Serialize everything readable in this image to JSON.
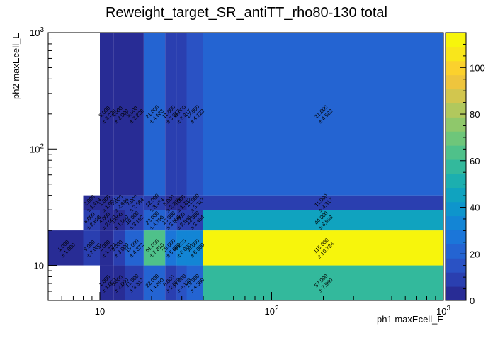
{
  "chart_data": {
    "type": "heatmap",
    "title": "Reweight_target_SR_antiTT_rho80-130 total",
    "xlabel": "ph1 maxEcell_E",
    "ylabel": "ph2 maxEcell_E",
    "x_scale": "log",
    "y_scale": "log",
    "xlim": [
      5,
      1000
    ],
    "ylim": [
      5,
      1000
    ],
    "x_tick_labels": [
      "10",
      "10^2",
      "10^3"
    ],
    "y_tick_labels": [
      "10",
      "10^2",
      "10^3"
    ],
    "z_range": [
      0,
      115
    ],
    "colorbar_ticks": [
      "0",
      "20",
      "40",
      "60",
      "80",
      "100"
    ],
    "x_edges": [
      5,
      8,
      10,
      12,
      14,
      18,
      24,
      28,
      32,
      40,
      1000
    ],
    "y_edges": [
      5,
      10,
      20,
      30,
      40,
      1000
    ],
    "cells": [
      {
        "ix": 2,
        "iy": 0,
        "value": 1,
        "text": "1.000",
        "err": "1.000"
      },
      {
        "ix": 3,
        "iy": 0,
        "value": 6,
        "text": "6.000",
        "err": "2.000"
      },
      {
        "ix": 4,
        "iy": 0,
        "value": 11,
        "text": "11.000",
        "err": "3.317"
      },
      {
        "ix": 5,
        "iy": 0,
        "value": 22,
        "text": "22.000",
        "err": "4.690"
      },
      {
        "ix": 6,
        "iy": 0,
        "value": 8,
        "text": "8.000",
        "err": "2.828"
      },
      {
        "ix": 7,
        "iy": 0,
        "value": 17,
        "text": "17.000",
        "err": "4.123"
      },
      {
        "ix": 8,
        "iy": 0,
        "value": 19,
        "text": "19.000",
        "err": "4.359"
      },
      {
        "ix": 9,
        "iy": 0,
        "value": 57,
        "text": "57.000",
        "err": "7.550"
      },
      {
        "ix": 0,
        "iy": 1,
        "value": 1,
        "text": "1.000",
        "err": "1.000"
      },
      {
        "ix": 1,
        "iy": 1,
        "value": 9,
        "text": "9.000",
        "err": "3.000"
      },
      {
        "ix": 2,
        "iy": 1,
        "value": 2,
        "text": "2.000",
        "err": "1.732"
      },
      {
        "ix": 3,
        "iy": 1,
        "value": 9,
        "text": "9.000",
        "err": "3.000"
      },
      {
        "ix": 4,
        "iy": 1,
        "value": 19,
        "text": "19.000",
        "err": "4.372"
      },
      {
        "ix": 5,
        "iy": 1,
        "value": 61,
        "text": "61.000",
        "err": "7.810"
      },
      {
        "ix": 6,
        "iy": 1,
        "value": 25,
        "text": "25.000",
        "err": "5.000"
      },
      {
        "ix": 7,
        "iy": 1,
        "value": 36,
        "text": "36.000",
        "err": "6.000"
      },
      {
        "ix": 8,
        "iy": 1,
        "value": 36,
        "text": "36.000",
        "err": "6.000"
      },
      {
        "ix": 9,
        "iy": 1,
        "value": 115,
        "text": "115.000",
        "err": "10.724"
      },
      {
        "ix": 1,
        "iy": 2,
        "value": 8,
        "text": "8.000",
        "err": "2.828"
      },
      {
        "ix": 2,
        "iy": 2,
        "value": 4,
        "text": "4.000",
        "err": "2.000"
      },
      {
        "ix": 3,
        "iy": 2,
        "value": 1,
        "text": "1.000",
        "err": "1.000"
      },
      {
        "ix": 4,
        "iy": 2,
        "value": 10,
        "text": "10.000",
        "err": "3.162"
      },
      {
        "ix": 5,
        "iy": 2,
        "value": 23,
        "text": "23.000",
        "err": "4.796"
      },
      {
        "ix": 6,
        "iy": 2,
        "value": 13,
        "text": "13.000",
        "err": "3.606"
      },
      {
        "ix": 7,
        "iy": 2,
        "value": 7,
        "text": "7.000",
        "err": "2.646"
      },
      {
        "ix": 8,
        "iy": 2,
        "value": 12,
        "text": "12.000",
        "err": "3.464"
      },
      {
        "ix": 9,
        "iy": 2,
        "value": 44,
        "text": "44.000",
        "err": "6.633"
      },
      {
        "ix": 1,
        "iy": 3,
        "value": 2,
        "text": "2.000",
        "err": "1.414"
      },
      {
        "ix": 2,
        "iy": 3,
        "value": 1,
        "text": "1.000",
        "err": "1.000"
      },
      {
        "ix": 3,
        "iy": 3,
        "value": 7,
        "text": "7.000",
        "err": "2.646"
      },
      {
        "ix": 4,
        "iy": 3,
        "value": 7,
        "text": "7.000",
        "err": "2.664"
      },
      {
        "ix": 5,
        "iy": 3,
        "value": 12,
        "text": "12.000",
        "err": "3.464"
      },
      {
        "ix": 6,
        "iy": 3,
        "value": 5,
        "text": "5.000",
        "err": "2.236"
      },
      {
        "ix": 7,
        "iy": 3,
        "value": 3,
        "text": "3.000",
        "err": "1.732"
      },
      {
        "ix": 8,
        "iy": 3,
        "value": 11,
        "text": "11.000",
        "err": "3.317"
      },
      {
        "ix": 9,
        "iy": 3,
        "value": 11,
        "text": "11.000",
        "err": "3.317"
      },
      {
        "ix": 2,
        "iy": 4,
        "value": 5,
        "text": "5.000",
        "err": "2.236"
      },
      {
        "ix": 3,
        "iy": 4,
        "value": 4,
        "text": "4.000",
        "err": "2.000"
      },
      {
        "ix": 4,
        "iy": 4,
        "value": 5,
        "text": "5.000",
        "err": "2.236"
      },
      {
        "ix": 5,
        "iy": 4,
        "value": 21,
        "text": "21.000",
        "err": "4.583"
      },
      {
        "ix": 6,
        "iy": 4,
        "value": 11,
        "text": "11.000",
        "err": "3.317"
      },
      {
        "ix": 7,
        "iy": 4,
        "value": 11,
        "text": "11.000",
        "err": "3.317"
      },
      {
        "ix": 8,
        "iy": 4,
        "value": 17,
        "text": "17.000",
        "err": "4.123"
      },
      {
        "ix": 9,
        "iy": 4,
        "value": 21,
        "text": "21.000",
        "err": "4.583"
      }
    ]
  }
}
